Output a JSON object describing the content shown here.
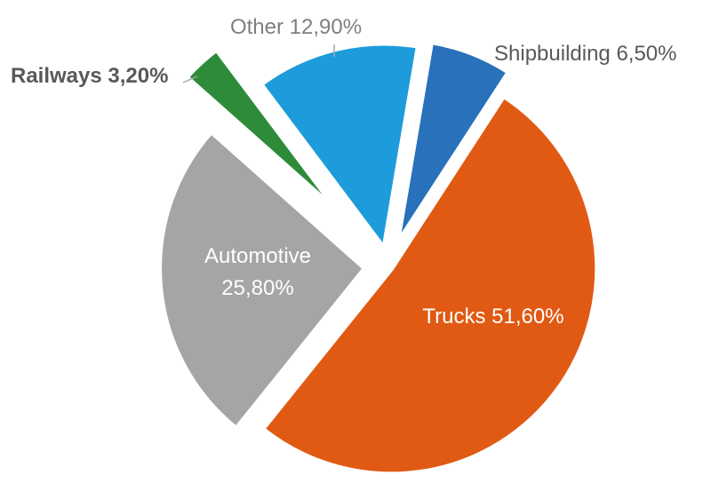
{
  "chart_data": {
    "type": "pie",
    "title": "",
    "slices": [
      {
        "label": "Trucks",
        "value_label": "51,60%",
        "value": 51.6,
        "color": "#E05A14",
        "label_color": "#FFFFFF",
        "bold": false,
        "label_inside": true
      },
      {
        "label": "Automotive",
        "value_label": "25,80%",
        "value": 25.8,
        "color": "#A5A5A5",
        "label_color": "#FFFFFF",
        "bold": false,
        "label_inside": true
      },
      {
        "label": "Railways",
        "value_label": "3,20%",
        "value": 3.2,
        "color": "#2E8B3A",
        "label_color": "#595959",
        "bold": true,
        "label_inside": false
      },
      {
        "label": "Other",
        "value_label": "12,90%",
        "value": 12.9,
        "color": "#1E9BDB",
        "label_color": "#7F7F7F",
        "bold": false,
        "label_inside": false
      },
      {
        "label": "Shipbuilding",
        "value_label": "6,50%",
        "value": 6.5,
        "color": "#2971BA",
        "label_color": "#595959",
        "bold": false,
        "label_inside": false
      }
    ]
  }
}
